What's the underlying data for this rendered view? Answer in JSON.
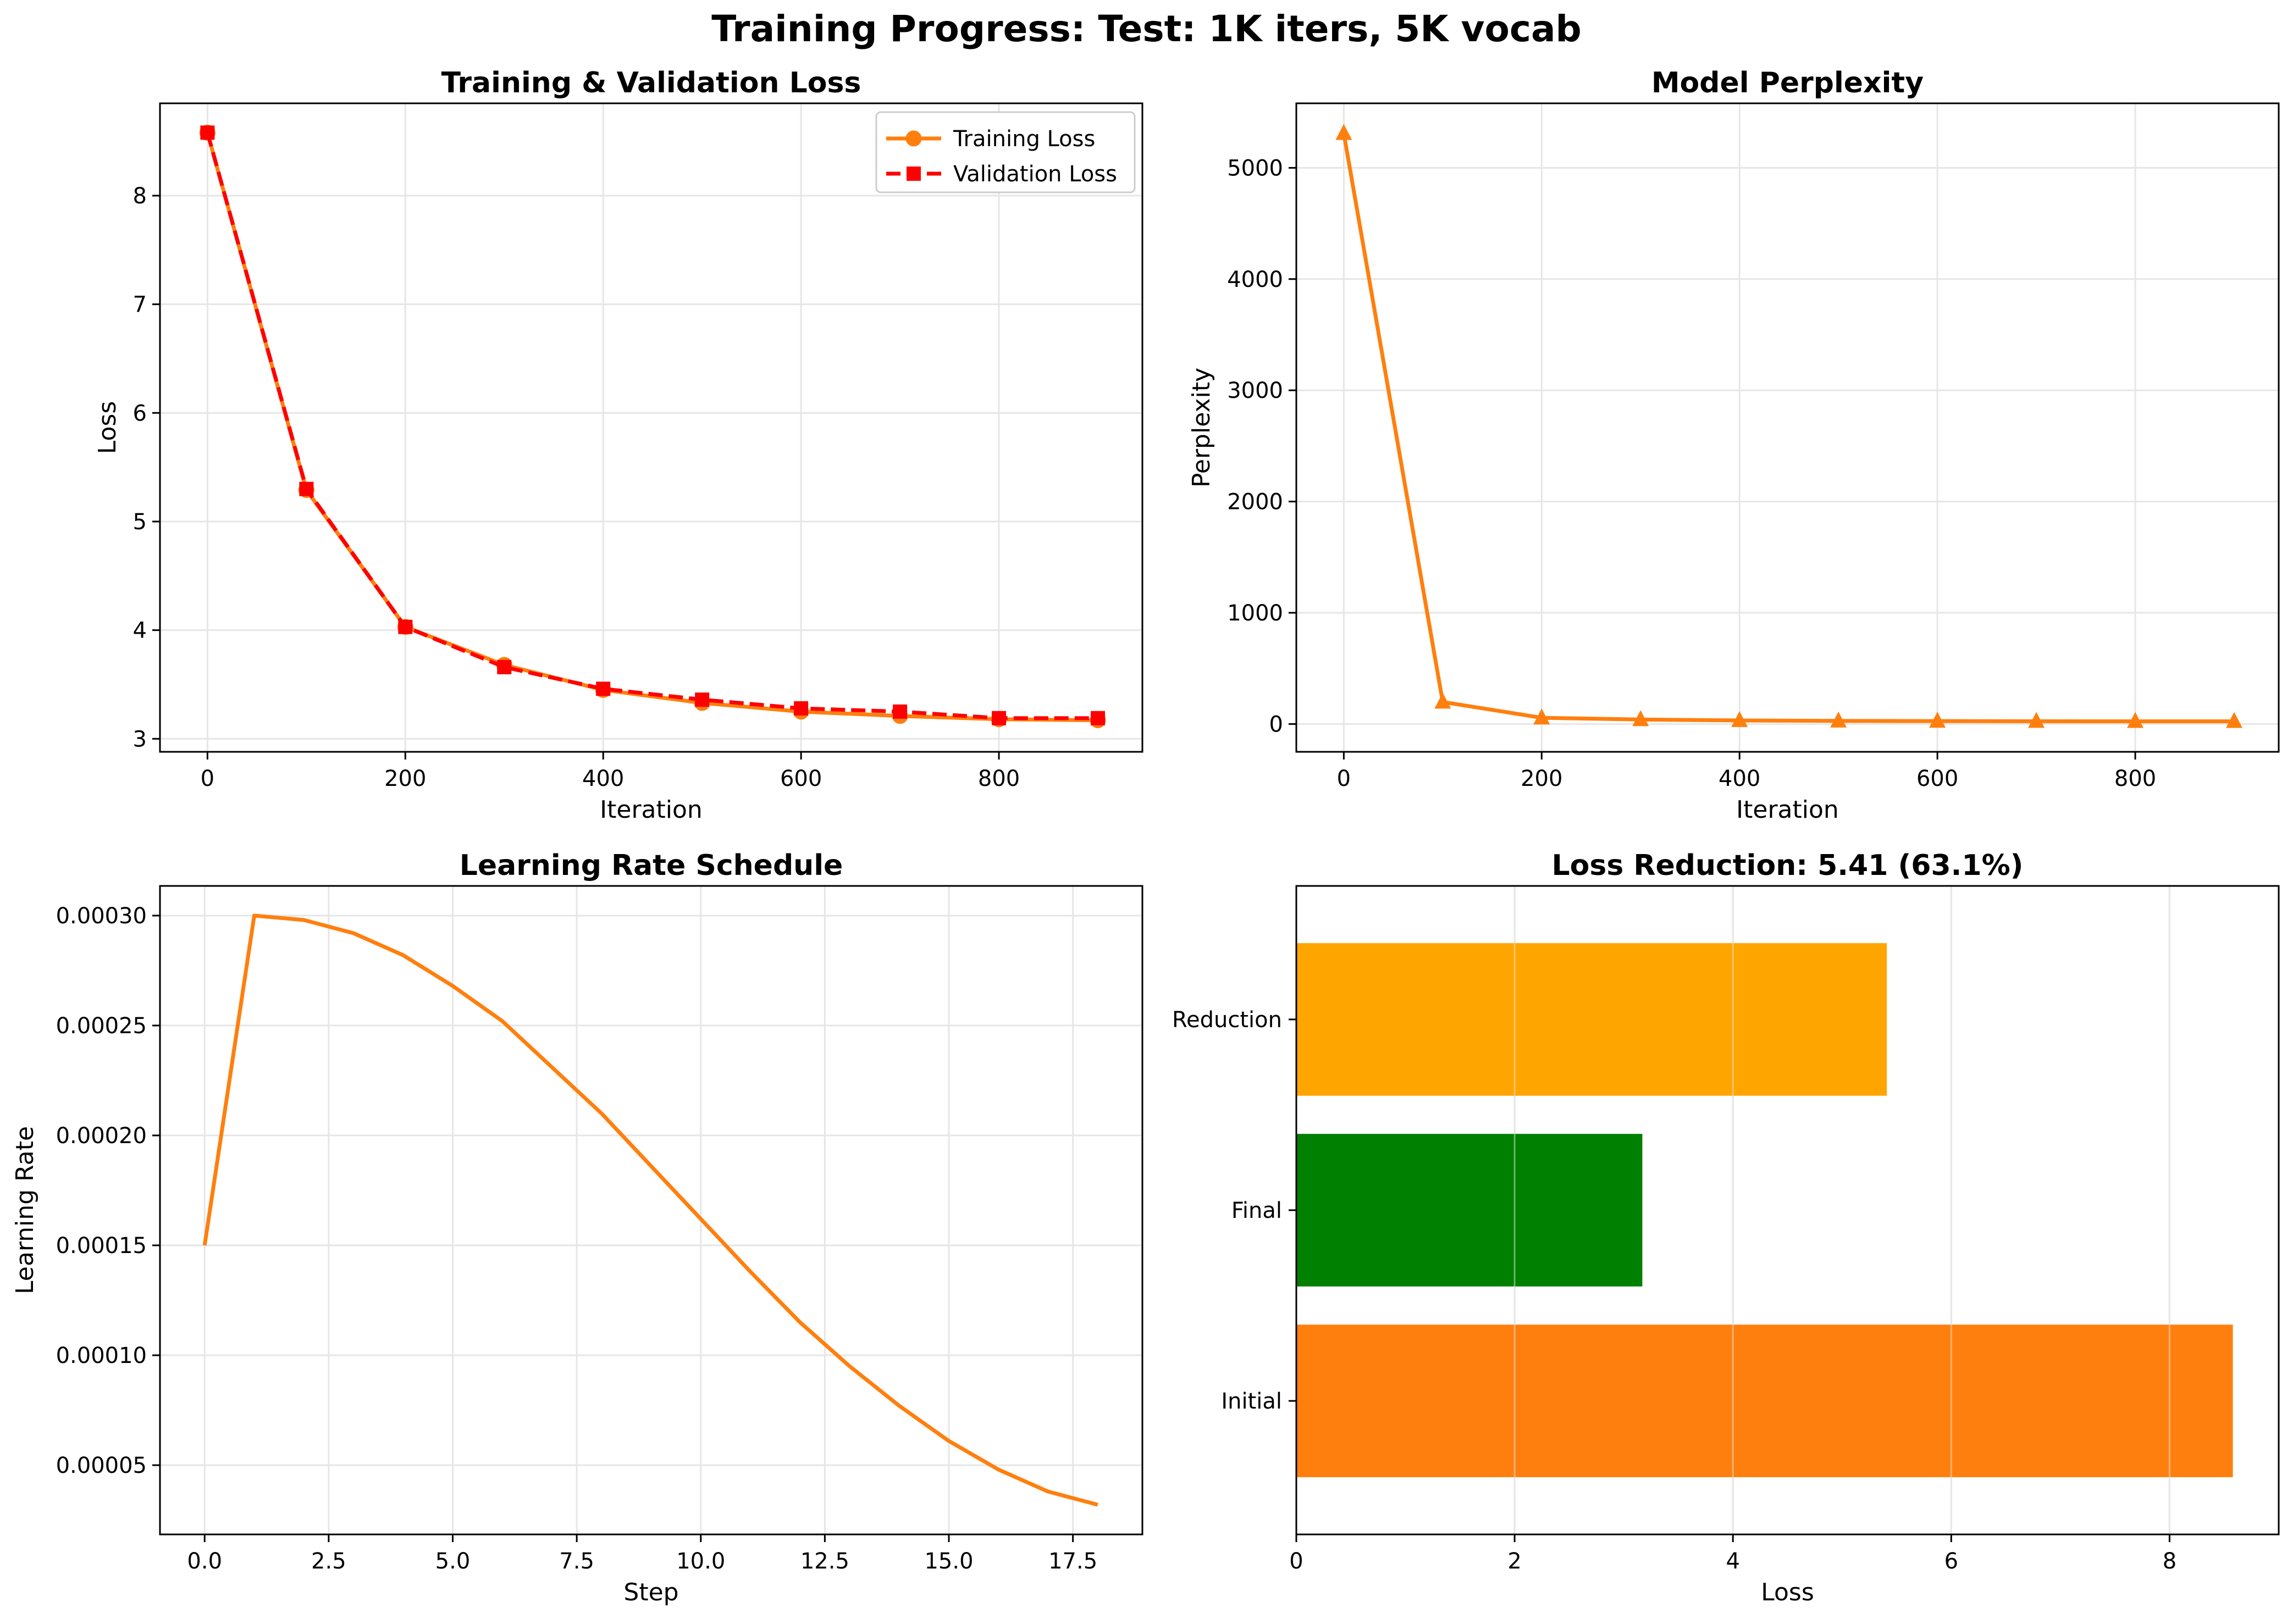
{
  "suptitle": "Training Progress: Test: 1K iters, 5K vocab",
  "colors": {
    "orange": "#ff7f0e",
    "red": "#ff0000",
    "bar_orange": "#ffa500",
    "bar_green": "#008000",
    "grid": "#e6e6e6",
    "axis": "#000000"
  },
  "chart_data": [
    {
      "id": "loss",
      "type": "line",
      "title": "Training & Validation Loss",
      "xlabel": "Iteration",
      "ylabel": "Loss",
      "x": [
        0,
        100,
        200,
        300,
        400,
        500,
        600,
        700,
        800,
        900
      ],
      "xlim": [
        -48,
        945
      ],
      "ylim": [
        2.88,
        8.85
      ],
      "xticks": [
        0,
        200,
        400,
        600,
        800
      ],
      "yticks": [
        3,
        4,
        5,
        6,
        7,
        8
      ],
      "grid": true,
      "legend": "top-right",
      "series": [
        {
          "name": "Training Loss",
          "marker": "circle",
          "linestyle": "solid",
          "color": "#ff7f0e",
          "values": [
            8.58,
            5.29,
            4.03,
            3.68,
            3.45,
            3.33,
            3.25,
            3.21,
            3.18,
            3.17
          ]
        },
        {
          "name": "Validation Loss",
          "marker": "square",
          "linestyle": "dashed",
          "color": "#ff0000",
          "values": [
            8.58,
            5.3,
            4.03,
            3.66,
            3.46,
            3.36,
            3.28,
            3.25,
            3.19,
            3.19
          ]
        }
      ]
    },
    {
      "id": "perplexity",
      "type": "line",
      "title": "Model Perplexity",
      "xlabel": "Iteration",
      "ylabel": "Perplexity",
      "x": [
        0,
        100,
        200,
        300,
        400,
        500,
        600,
        700,
        800,
        900
      ],
      "xlim": [
        -48,
        945
      ],
      "ylim": [
        -250,
        5580
      ],
      "xticks": [
        0,
        200,
        400,
        600,
        800
      ],
      "yticks": [
        0,
        1000,
        2000,
        3000,
        4000,
        5000
      ],
      "grid": true,
      "series": [
        {
          "name": "Perplexity",
          "marker": "triangle",
          "linestyle": "solid",
          "color": "#ff7f0e",
          "values": [
            5310,
            198,
            56,
            40,
            32,
            28,
            26,
            25,
            24,
            24
          ]
        }
      ]
    },
    {
      "id": "lr",
      "type": "line",
      "title": "Learning Rate Schedule",
      "xlabel": "Step",
      "ylabel": "Learning Rate",
      "x": [
        0,
        1,
        2,
        3,
        4,
        5,
        6,
        7,
        8,
        9,
        10,
        11,
        12,
        13,
        14,
        15,
        16,
        17,
        18
      ],
      "xlim": [
        -0.9,
        18.9
      ],
      "ylim": [
        1.85e-05,
        0.0003135
      ],
      "xticks": [
        0,
        2.5,
        5,
        7.5,
        10,
        12.5,
        15,
        17.5
      ],
      "xticklabels": [
        "0.0",
        "2.5",
        "5.0",
        "7.5",
        "10.0",
        "12.5",
        "15.0",
        "17.5"
      ],
      "yticks": [
        5e-05,
        0.0001,
        0.00015,
        0.0002,
        0.00025,
        0.0003
      ],
      "yticklabels": [
        "0.00005",
        "0.00010",
        "0.00015",
        "0.00020",
        "0.00025",
        "0.00030"
      ],
      "grid": true,
      "series": [
        {
          "name": "Learning Rate",
          "marker": "none",
          "linestyle": "solid",
          "color": "#ff7f0e",
          "values": [
            0.00015,
            0.0003,
            0.000298,
            0.000292,
            0.000282,
            0.000268,
            0.000252,
            0.000231,
            0.00021,
            0.000186,
            0.000162,
            0.000138,
            0.000115,
            9.5e-05,
            7.7e-05,
            6.1e-05,
            4.8e-05,
            3.8e-05,
            3.2e-05
          ]
        }
      ]
    },
    {
      "id": "reduction",
      "type": "bar",
      "orientation": "horizontal",
      "title": "Loss Reduction: 5.41 (63.1%)",
      "xlabel": "Loss",
      "ylabel": "",
      "categories": [
        "Initial",
        "Final",
        "Reduction"
      ],
      "values": [
        8.58,
        3.17,
        5.41
      ],
      "colors": [
        "#ff7f0e",
        "#008000",
        "#ffa500"
      ],
      "xlim": [
        0,
        9.0
      ],
      "xticks": [
        0,
        2,
        4,
        6,
        8
      ],
      "grid": true
    }
  ]
}
